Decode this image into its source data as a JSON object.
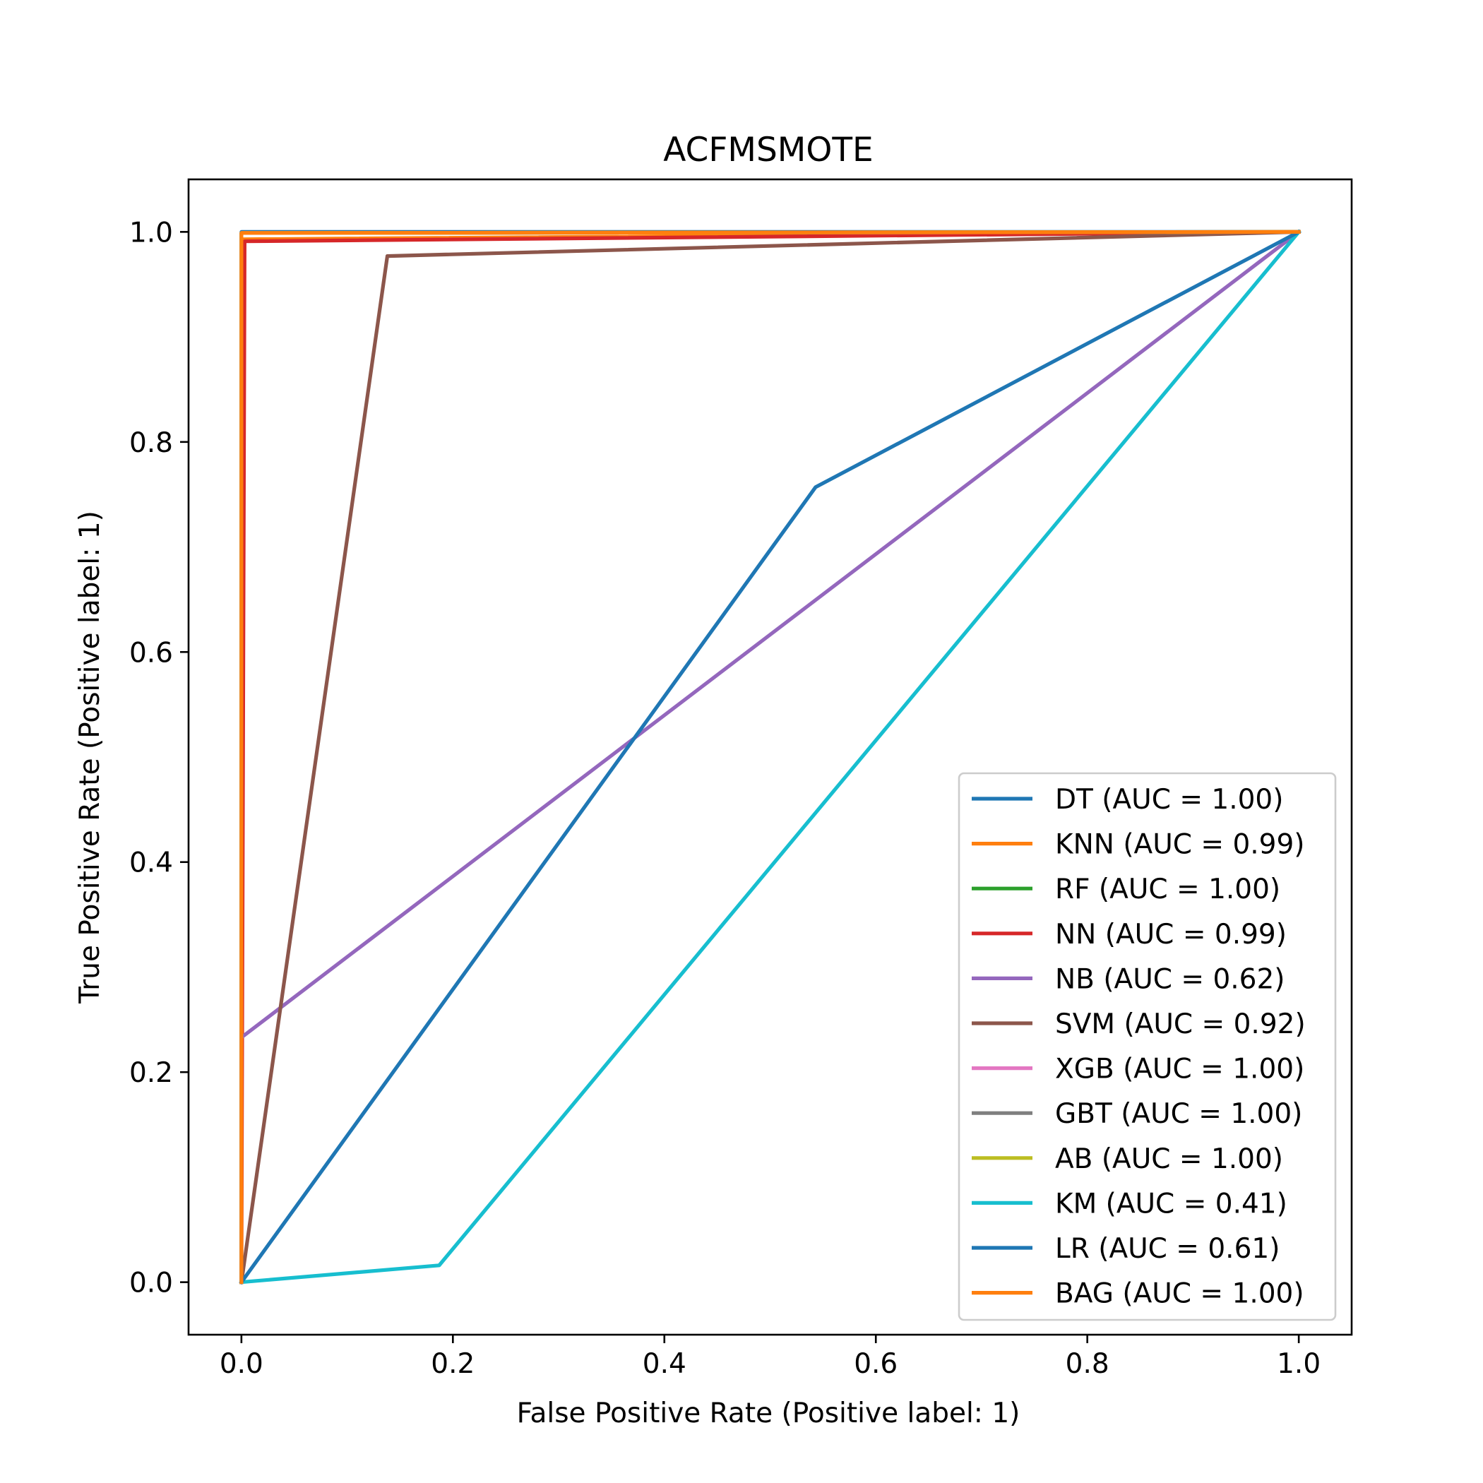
{
  "chart_data": {
    "type": "line",
    "title": "ACFMSMOTE",
    "xlabel": "False Positive Rate (Positive label: 1)",
    "ylabel": "True Positive Rate (Positive label: 1)",
    "xlim": [
      -0.05,
      1.05
    ],
    "ylim": [
      -0.05,
      1.05
    ],
    "xticks": [
      0.0,
      0.2,
      0.4,
      0.6,
      0.8,
      1.0
    ],
    "xtick_labels": [
      "0.0",
      "0.2",
      "0.4",
      "0.6",
      "0.8",
      "1.0"
    ],
    "yticks": [
      0.0,
      0.2,
      0.4,
      0.6,
      0.8,
      1.0
    ],
    "ytick_labels": [
      "0.0",
      "0.2",
      "0.4",
      "0.6",
      "0.8",
      "1.0"
    ],
    "grid": false,
    "legend_position": "lower-right",
    "series": [
      {
        "name": "DT (AUC = 1.00)",
        "color": "#1f77b4",
        "x": [
          0,
          0,
          1
        ],
        "y": [
          0,
          1.0,
          1.0
        ]
      },
      {
        "name": "KNN (AUC = 0.99)",
        "color": "#ff7f0e",
        "x": [
          0,
          0.001,
          1
        ],
        "y": [
          0,
          0.993,
          1.0
        ]
      },
      {
        "name": "RF (AUC = 1.00)",
        "color": "#2ca02c",
        "x": [
          0,
          0,
          1
        ],
        "y": [
          0,
          0.999,
          1.0
        ]
      },
      {
        "name": "NN (AUC = 0.99)",
        "color": "#d62728",
        "x": [
          0,
          0.003,
          1
        ],
        "y": [
          0,
          0.991,
          1.0
        ]
      },
      {
        "name": "NB (AUC = 0.62)",
        "color": "#9467bd",
        "x": [
          0,
          0,
          1
        ],
        "y": [
          0,
          0.233,
          1.0
        ]
      },
      {
        "name": "SVM (AUC = 0.92)",
        "color": "#8c564b",
        "x": [
          0,
          0.138,
          1
        ],
        "y": [
          0,
          0.977,
          1.0
        ]
      },
      {
        "name": "XGB (AUC = 1.00)",
        "color": "#e377c2",
        "x": [
          0,
          0,
          1
        ],
        "y": [
          0,
          0.999,
          1.0
        ]
      },
      {
        "name": "GBT (AUC = 1.00)",
        "color": "#7f7f7f",
        "x": [
          0,
          0,
          1
        ],
        "y": [
          0,
          0.999,
          1.0
        ]
      },
      {
        "name": "AB (AUC = 1.00)",
        "color": "#bcbd22",
        "x": [
          0,
          0,
          1
        ],
        "y": [
          0,
          0.999,
          1.0
        ]
      },
      {
        "name": "KM (AUC = 0.41)",
        "color": "#17becf",
        "x": [
          0,
          0.187,
          1
        ],
        "y": [
          0,
          0.016,
          1.0
        ]
      },
      {
        "name": "LR (AUC = 0.61)",
        "color": "#1f77b4",
        "x": [
          0,
          0.543,
          1
        ],
        "y": [
          0,
          0.757,
          1.0
        ]
      },
      {
        "name": "BAG (AUC = 1.00)",
        "color": "#ff7f0e",
        "x": [
          0,
          0,
          1
        ],
        "y": [
          0,
          0.999,
          1.0
        ]
      }
    ]
  }
}
